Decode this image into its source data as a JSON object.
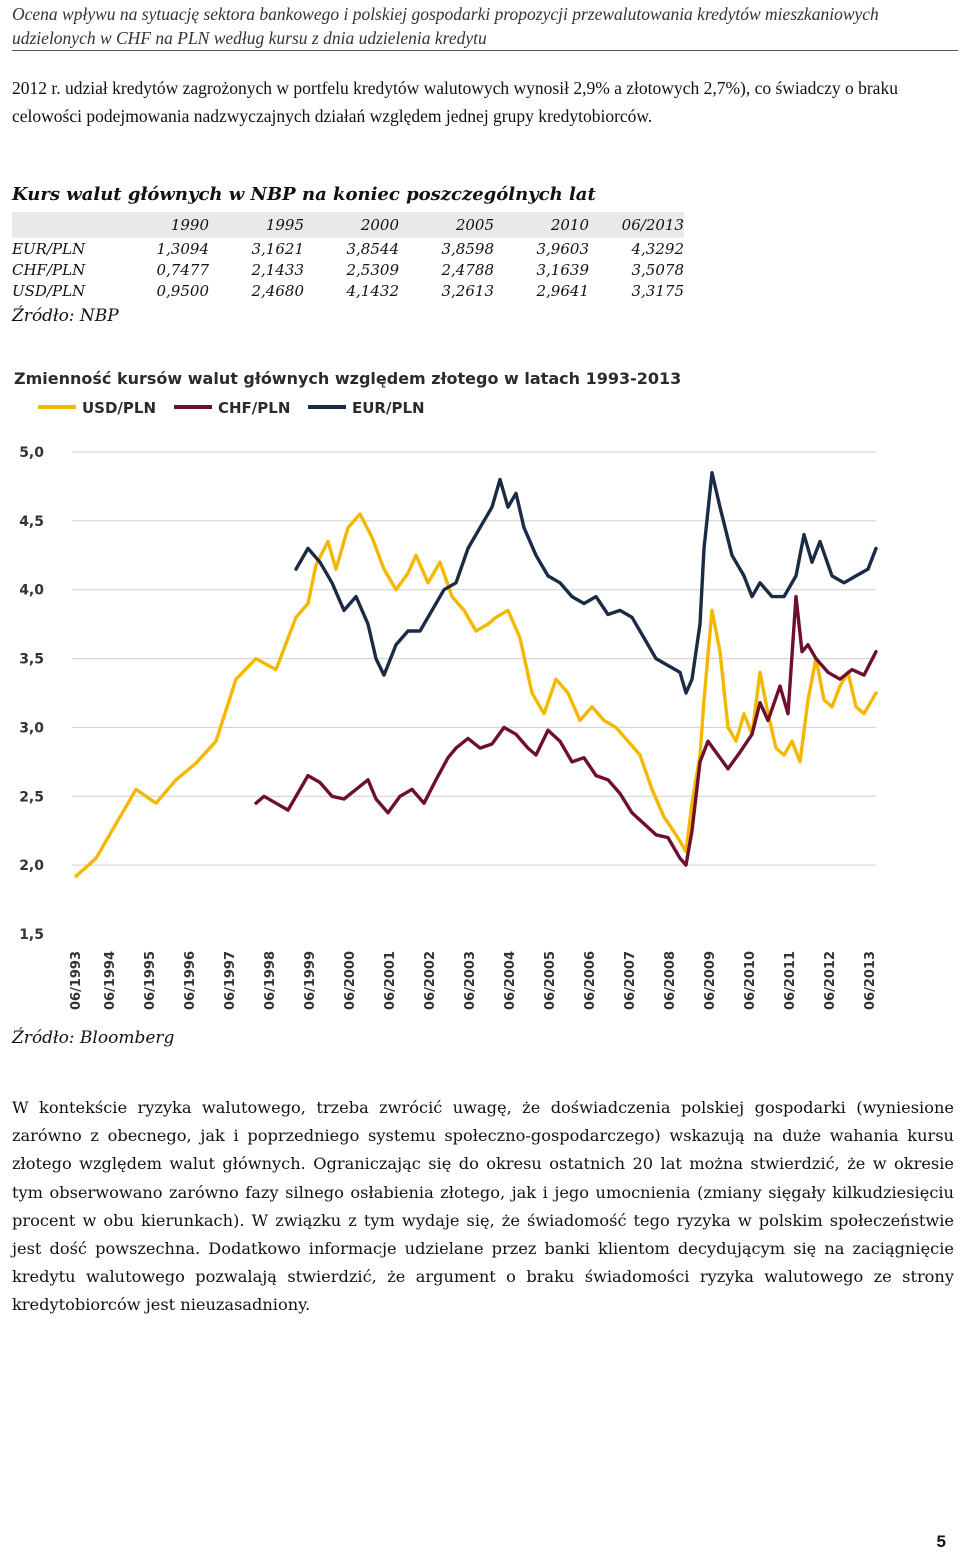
{
  "header": {
    "running_title": "Ocena wpływu na sytuację sektora bankowego i polskiej gospodarki propozycji przewalutowania kredytów mieszkaniowych udzielonych w CHF na PLN według kursu z dnia udzielenia kredytu"
  },
  "intro_paragraph": "2012 r. udział kredytów zagrożonych w portfelu kredytów walutowych wynosił 2,9% a złotowych 2,7%), co świadczy o braku celowości podejmowania nadzwyczajnych działań względem jednej grupy kredytobiorców.",
  "rates_table": {
    "title": "Kurs walut głównych w NBP na koniec poszczególnych lat",
    "columns": [
      "1990",
      "1995",
      "2000",
      "2005",
      "2010",
      "06/2013"
    ],
    "rows": [
      {
        "label": "EUR/PLN",
        "values": [
          "1,3094",
          "3,1621",
          "3,8544",
          "3,8598",
          "3,9603",
          "4,3292"
        ]
      },
      {
        "label": "CHF/PLN",
        "values": [
          "0,7477",
          "2,1433",
          "2,5309",
          "2,4788",
          "3,1639",
          "3,5078"
        ]
      },
      {
        "label": "USD/PLN",
        "values": [
          "0,9500",
          "2,4680",
          "4,1432",
          "3,2613",
          "2,9641",
          "3,3175"
        ]
      }
    ],
    "source": "Źródło: NBP"
  },
  "chart_data": {
    "type": "line",
    "title": "Zmienność kursów walut głównych względem złotego w latach 1993-2013",
    "xlabel": "",
    "ylabel": "",
    "ylim": [
      1.5,
      5.0
    ],
    "yticks": [
      "5,0",
      "4,5",
      "4,0",
      "3,5",
      "3,0",
      "2,5",
      "2,0",
      "1,5"
    ],
    "ytick_values": [
      5.0,
      4.5,
      4.0,
      3.5,
      3.0,
      2.5,
      2.0,
      1.5
    ],
    "xticks": [
      "06/1993",
      "06/1994",
      "06/1995",
      "06/1996",
      "06/1997",
      "06/1998",
      "06/1999",
      "06/2000",
      "06/2001",
      "06/2002",
      "06/2003",
      "06/2004",
      "06/2005",
      "06/2006",
      "06/2007",
      "06/2008",
      "06/2009",
      "06/2010",
      "06/2011",
      "06/2012",
      "06/2013"
    ],
    "xlim": [
      1993.5,
      2013.5
    ],
    "grid": true,
    "legend_position": "top-left",
    "series": [
      {
        "name": "USD/PLN",
        "color": "#f5b800",
        "x": [
          1993.5,
          1994.0,
          1994.5,
          1995.0,
          1995.5,
          1996.0,
          1996.5,
          1997.0,
          1997.5,
          1998.0,
          1998.5,
          1999.0,
          1999.3,
          1999.5,
          1999.8,
          2000.0,
          2000.3,
          2000.6,
          2000.9,
          2001.2,
          2001.5,
          2001.8,
          2002.0,
          2002.3,
          2002.6,
          2002.9,
          2003.2,
          2003.5,
          2003.8,
          2004.0,
          2004.3,
          2004.6,
          2004.9,
          2005.2,
          2005.5,
          2005.8,
          2006.1,
          2006.4,
          2006.7,
          2007.0,
          2007.3,
          2007.6,
          2007.9,
          2008.2,
          2008.5,
          2008.75,
          2008.9,
          2009.1,
          2009.2,
          2009.4,
          2009.6,
          2009.8,
          2010.0,
          2010.2,
          2010.4,
          2010.6,
          2010.8,
          2011.0,
          2011.2,
          2011.4,
          2011.6,
          2011.8,
          2012.0,
          2012.2,
          2012.4,
          2012.6,
          2012.8,
          2013.0,
          2013.2,
          2013.5
        ],
        "values": [
          1.92,
          2.05,
          2.3,
          2.55,
          2.45,
          2.62,
          2.74,
          2.9,
          3.35,
          3.5,
          3.42,
          3.8,
          3.9,
          4.18,
          4.35,
          4.15,
          4.45,
          4.55,
          4.38,
          4.15,
          4.0,
          4.12,
          4.25,
          4.05,
          4.2,
          3.95,
          3.85,
          3.7,
          3.75,
          3.8,
          3.85,
          3.65,
          3.25,
          3.1,
          3.35,
          3.25,
          3.05,
          3.15,
          3.05,
          3.0,
          2.9,
          2.8,
          2.55,
          2.35,
          2.22,
          2.1,
          2.45,
          2.8,
          3.2,
          3.85,
          3.55,
          3.0,
          2.9,
          3.1,
          2.95,
          3.4,
          3.1,
          2.85,
          2.8,
          2.9,
          2.75,
          3.2,
          3.5,
          3.2,
          3.15,
          3.3,
          3.4,
          3.15,
          3.1,
          3.25
        ]
      },
      {
        "name": "CHF/PLN",
        "color": "#6e0f2e",
        "x": [
          1998.0,
          1998.2,
          1998.5,
          1998.8,
          1999.0,
          1999.3,
          1999.6,
          1999.9,
          2000.2,
          2000.5,
          2000.8,
          2001.0,
          2001.3,
          2001.6,
          2001.9,
          2002.2,
          2002.5,
          2002.8,
          2003.0,
          2003.3,
          2003.6,
          2003.9,
          2004.2,
          2004.5,
          2004.8,
          2005.0,
          2005.3,
          2005.6,
          2005.9,
          2006.2,
          2006.5,
          2006.8,
          2007.1,
          2007.4,
          2007.7,
          2008.0,
          2008.3,
          2008.6,
          2008.75,
          2008.9,
          2009.1,
          2009.3,
          2009.5,
          2009.8,
          2010.1,
          2010.4,
          2010.6,
          2010.8,
          2011.1,
          2011.3,
          2011.5,
          2011.65,
          2011.8,
          2012.0,
          2012.3,
          2012.6,
          2012.9,
          2013.2,
          2013.5
        ],
        "values": [
          2.45,
          2.5,
          2.45,
          2.4,
          2.5,
          2.65,
          2.6,
          2.5,
          2.48,
          2.55,
          2.62,
          2.48,
          2.38,
          2.5,
          2.55,
          2.45,
          2.62,
          2.78,
          2.85,
          2.92,
          2.85,
          2.88,
          3.0,
          2.95,
          2.85,
          2.8,
          2.98,
          2.9,
          2.75,
          2.78,
          2.65,
          2.62,
          2.52,
          2.38,
          2.3,
          2.22,
          2.2,
          2.05,
          2.0,
          2.25,
          2.75,
          2.9,
          2.82,
          2.7,
          2.82,
          2.95,
          3.18,
          3.05,
          3.3,
          3.1,
          3.95,
          3.55,
          3.6,
          3.5,
          3.4,
          3.35,
          3.42,
          3.38,
          3.55
        ]
      },
      {
        "name": "EUR/PLN",
        "color": "#1a2b46",
        "x": [
          1999.0,
          1999.3,
          1999.6,
          1999.9,
          2000.2,
          2000.5,
          2000.8,
          2001.0,
          2001.2,
          2001.5,
          2001.8,
          2002.1,
          2002.4,
          2002.7,
          2003.0,
          2003.3,
          2003.6,
          2003.9,
          2004.1,
          2004.3,
          2004.5,
          2004.7,
          2005.0,
          2005.3,
          2005.6,
          2005.9,
          2006.2,
          2006.5,
          2006.8,
          2007.1,
          2007.4,
          2007.7,
          2008.0,
          2008.3,
          2008.6,
          2008.75,
          2008.9,
          2009.1,
          2009.2,
          2009.4,
          2009.6,
          2009.9,
          2010.2,
          2010.4,
          2010.6,
          2010.9,
          2011.2,
          2011.5,
          2011.7,
          2011.9,
          2012.1,
          2012.4,
          2012.7,
          2013.0,
          2013.3,
          2013.5
        ],
        "values": [
          4.15,
          4.3,
          4.2,
          4.05,
          3.85,
          3.95,
          3.75,
          3.5,
          3.38,
          3.6,
          3.7,
          3.7,
          3.85,
          4.0,
          4.05,
          4.3,
          4.45,
          4.6,
          4.8,
          4.6,
          4.7,
          4.45,
          4.25,
          4.1,
          4.05,
          3.95,
          3.9,
          3.95,
          3.82,
          3.85,
          3.8,
          3.65,
          3.5,
          3.45,
          3.4,
          3.25,
          3.35,
          3.75,
          4.3,
          4.85,
          4.6,
          4.25,
          4.1,
          3.95,
          4.05,
          3.95,
          3.95,
          4.1,
          4.4,
          4.2,
          4.35,
          4.1,
          4.05,
          4.1,
          4.15,
          4.3
        ]
      }
    ]
  },
  "chart_source": "Źródło: Bloomberg",
  "body_paragraph": "W kontekście ryzyka walutowego, trzeba zwrócić uwagę, że doświadczenia polskiej gospodarki (wyniesione zarówno z obecnego, jak i poprzedniego systemu społeczno-gospodarczego) wskazują na duże wahania kursu złotego względem walut głównych. Ograniczając się do okresu ostatnich 20 lat można stwierdzić, że w okresie tym obserwowano zarówno fazy silnego osłabienia złotego, jak i jego umocnienia (zmiany sięgały kilkudziesięciu procent w obu kierunkach). W związku z tym wydaje się, że świadomość tego ryzyka w polskim społeczeństwie jest dość powszechna. Dodatkowo informacje udzielane przez banki klientom decydującym się na zaciągnięcie kredytu walutowego pozwalają stwierdzić, że argument o braku świadomości ryzyka walutowego ze strony kredytobiorców jest nieuzasadniony.",
  "page_number": "5"
}
